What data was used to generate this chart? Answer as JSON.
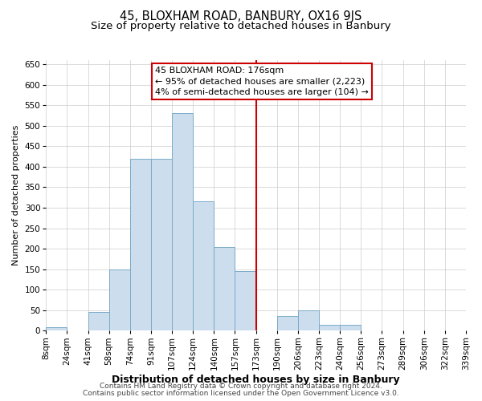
{
  "title": "45, BLOXHAM ROAD, BANBURY, OX16 9JS",
  "subtitle": "Size of property relative to detached houses in Banbury",
  "xlabel": "Distribution of detached houses by size in Banbury",
  "ylabel": "Number of detached properties",
  "bin_labels": [
    "8sqm",
    "24sqm",
    "41sqm",
    "58sqm",
    "74sqm",
    "91sqm",
    "107sqm",
    "124sqm",
    "140sqm",
    "157sqm",
    "173sqm",
    "190sqm",
    "206sqm",
    "223sqm",
    "240sqm",
    "256sqm",
    "273sqm",
    "289sqm",
    "306sqm",
    "322sqm",
    "339sqm"
  ],
  "bar_values": [
    8,
    0,
    45,
    150,
    420,
    420,
    530,
    315,
    205,
    145,
    0,
    35,
    50,
    15,
    15,
    0,
    0,
    0,
    0,
    0
  ],
  "bar_color": "#ccdded",
  "bar_edgecolor": "#7aaac8",
  "vline_x_index": 10,
  "vline_color": "#cc0000",
  "annotation_title": "45 BLOXHAM ROAD: 176sqm",
  "annotation_line1": "← 95% of detached houses are smaller (2,223)",
  "annotation_line2": "4% of semi-detached houses are larger (104) →",
  "annotation_box_edgecolor": "#cc0000",
  "ylim": [
    0,
    660
  ],
  "yticks": [
    0,
    50,
    100,
    150,
    200,
    250,
    300,
    350,
    400,
    450,
    500,
    550,
    600,
    650
  ],
  "footer1": "Contains HM Land Registry data © Crown copyright and database right 2024.",
  "footer2": "Contains public sector information licensed under the Open Government Licence v3.0.",
  "bg_color": "#ffffff",
  "grid_color": "#cccccc",
  "title_fontsize": 10.5,
  "subtitle_fontsize": 9.5,
  "xlabel_fontsize": 9,
  "ylabel_fontsize": 8,
  "tick_fontsize": 7.5,
  "annotation_fontsize": 8,
  "footer_fontsize": 6.5
}
